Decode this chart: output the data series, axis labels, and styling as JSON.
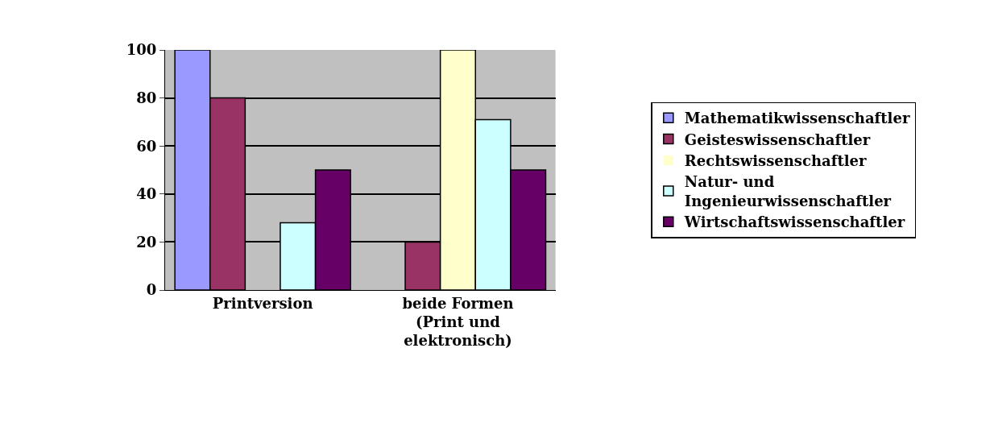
{
  "chart_data": {
    "type": "bar",
    "categories": [
      "Printversion",
      "beide Formen (Print und elektronisch)"
    ],
    "series": [
      {
        "name": "Mathematikwissenschaftler",
        "color": "#9999ff",
        "values": [
          100,
          0
        ]
      },
      {
        "name": "Geisteswissenschaftler",
        "color": "#993366",
        "values": [
          80,
          20
        ]
      },
      {
        "name": "Rechtswissenschaftler",
        "color": "#ffffcc",
        "values": [
          0,
          100
        ]
      },
      {
        "name": "Natur- und Ingenieurwissenschaftler",
        "color": "#ccffff",
        "values": [
          28,
          71
        ]
      },
      {
        "name": "Wirtschaftswissenschaftler",
        "color": "#660066",
        "values": [
          50,
          50
        ]
      }
    ],
    "ylim": [
      0,
      100
    ],
    "yticks": [
      0,
      20,
      40,
      60,
      80,
      100
    ],
    "grid": "y",
    "legend": "right"
  }
}
